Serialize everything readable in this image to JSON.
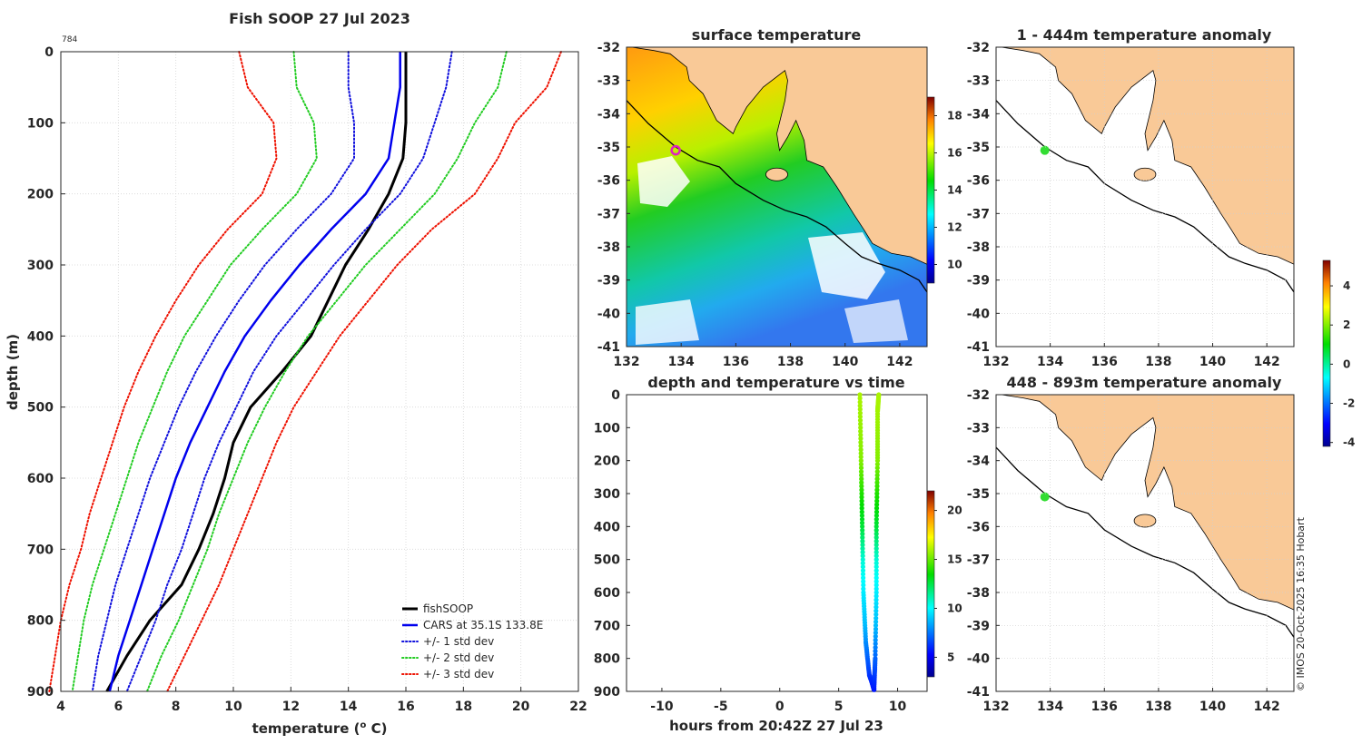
{
  "colors": {
    "land": "#f9c997",
    "observed": "#000000",
    "cars": "#0000ee",
    "std1": "#1010dd",
    "std2": "#22cc22",
    "std3": "#ee1100",
    "marker_sat": "#e020c0",
    "marker_anom": "#33dd33"
  },
  "chart_data": [
    {
      "type": "line",
      "panel": "profile",
      "title": "Fish SOOP 27 Jul 2023",
      "corner_label": "784",
      "xlabel": "temperature (",
      "xlabel_sup": "o",
      "xlabel_end": " C)",
      "ylabel": "depth (m)",
      "xlim": [
        4,
        22
      ],
      "ylim": [
        900,
        0
      ],
      "xticks": [
        "4",
        "6",
        "8",
        "10",
        "12",
        "14",
        "16",
        "18",
        "20",
        "22"
      ],
      "yticks": [
        "0",
        "100",
        "200",
        "300",
        "400",
        "500",
        "600",
        "700",
        "800",
        "900"
      ],
      "grid": true,
      "depth": [
        0,
        50,
        100,
        150,
        200,
        250,
        300,
        350,
        400,
        450,
        500,
        550,
        600,
        650,
        700,
        750,
        800,
        850,
        900
      ],
      "series": [
        {
          "name": "fishSOOP",
          "style": "solid",
          "color_key": "observed",
          "width": 3,
          "values": [
            16.0,
            16.0,
            16.0,
            15.9,
            15.4,
            14.7,
            13.9,
            13.3,
            12.7,
            11.7,
            10.6,
            10.0,
            9.7,
            9.3,
            8.8,
            8.2,
            7.1,
            6.3,
            5.6
          ]
        },
        {
          "name": "CARS at 35.1S 133.8E",
          "style": "solid",
          "color_key": "cars",
          "width": 2.5,
          "values": [
            15.8,
            15.8,
            15.6,
            15.4,
            14.6,
            13.4,
            12.3,
            11.3,
            10.4,
            9.7,
            9.1,
            8.5,
            8.0,
            7.6,
            7.2,
            6.8,
            6.4,
            6.0,
            5.7
          ]
        },
        {
          "name": "+/- 1 std dev",
          "style": "dotted",
          "color_key": "std1",
          "width": 2,
          "values": [
            14.0,
            14.0,
            14.2,
            14.2,
            13.4,
            12.2,
            11.1,
            10.2,
            9.4,
            8.7,
            8.1,
            7.6,
            7.1,
            6.7,
            6.3,
            5.9,
            5.6,
            5.3,
            5.1
          ]
        },
        {
          "name": "+/- 1 std dev (upper)",
          "style": "dotted",
          "color_key": "std1",
          "width": 2,
          "in_legend": false,
          "values": [
            17.6,
            17.4,
            17.0,
            16.6,
            15.8,
            14.6,
            13.5,
            12.5,
            11.5,
            10.7,
            10.1,
            9.5,
            9.0,
            8.6,
            8.2,
            7.7,
            7.3,
            6.8,
            6.3
          ]
        },
        {
          "name": "+/- 2 std dev",
          "style": "dotted",
          "color_key": "std2",
          "width": 2,
          "values": [
            12.1,
            12.2,
            12.8,
            12.9,
            12.2,
            11.0,
            9.9,
            9.1,
            8.3,
            7.7,
            7.2,
            6.7,
            6.3,
            5.9,
            5.5,
            5.1,
            4.8,
            4.6,
            4.4
          ]
        },
        {
          "name": "+/- 2 std dev (upper)",
          "style": "dotted",
          "color_key": "std2",
          "width": 2,
          "in_legend": false,
          "values": [
            19.5,
            19.2,
            18.4,
            17.8,
            17.0,
            15.8,
            14.6,
            13.6,
            12.6,
            11.8,
            11.1,
            10.5,
            10.0,
            9.5,
            9.1,
            8.6,
            8.1,
            7.5,
            7.0
          ]
        },
        {
          "name": "+/- 3 std dev",
          "style": "dotted",
          "color_key": "std3",
          "width": 2,
          "values": [
            10.2,
            10.5,
            11.4,
            11.5,
            11.0,
            9.8,
            8.8,
            8.0,
            7.3,
            6.7,
            6.2,
            5.8,
            5.4,
            5.0,
            4.7,
            4.3,
            4.0,
            3.8,
            3.6
          ]
        },
        {
          "name": "+/- 3 std dev (upper)",
          "style": "dotted",
          "color_key": "std3",
          "width": 2,
          "in_legend": false,
          "values": [
            21.4,
            20.9,
            19.8,
            19.2,
            18.4,
            16.9,
            15.7,
            14.7,
            13.7,
            12.9,
            12.1,
            11.5,
            11.0,
            10.5,
            10.0,
            9.5,
            8.9,
            8.3,
            7.7
          ]
        }
      ]
    },
    {
      "type": "heatmap",
      "panel": "surface",
      "title": "surface temperature",
      "xlim": [
        132,
        143
      ],
      "ylim": [
        -41,
        -32
      ],
      "xticks": [
        "132",
        "134",
        "136",
        "138",
        "140",
        "142"
      ],
      "yticks": [
        "-32",
        "-33",
        "-34",
        "-35",
        "-36",
        "-37",
        "-38",
        "-39",
        "-40",
        "-41"
      ],
      "colorbar": {
        "range": [
          9,
          19
        ],
        "ticks": [
          "10",
          "12",
          "14",
          "16",
          "18"
        ]
      },
      "marker": {
        "lon": 133.8,
        "lat": -35.1
      }
    },
    {
      "type": "scatter",
      "panel": "timeseries",
      "title": "depth and temperature vs time",
      "xlabel": "hours from 20:42Z 27 Jul 23",
      "xlim": [
        -13,
        12.5
      ],
      "ylim": [
        900,
        0
      ],
      "xticks": [
        "-10",
        "-5",
        "0",
        "5",
        "10"
      ],
      "yticks": [
        "0",
        "100",
        "200",
        "300",
        "400",
        "500",
        "600",
        "700",
        "800",
        "900"
      ],
      "colorbar": {
        "range": [
          3,
          22
        ],
        "ticks": [
          "5",
          "10",
          "15",
          "20"
        ]
      },
      "descent": {
        "hours": [
          6.8,
          6.9,
          7.0,
          7.1,
          7.3,
          7.6,
          7.8,
          8.0
        ],
        "depth": [
          0,
          200,
          400,
          600,
          750,
          850,
          870,
          895
        ]
      },
      "ascent": {
        "hours": [
          8.0,
          8.1,
          8.2,
          8.2,
          8.3,
          8.3,
          8.4
        ],
        "depth": [
          895,
          800,
          600,
          400,
          200,
          50,
          0
        ]
      },
      "temperature_by_depth": {
        "depth": [
          0,
          200,
          300,
          400,
          500,
          600,
          700,
          800,
          900
        ],
        "temp": [
          16.0,
          15.4,
          13.9,
          12.7,
          10.6,
          9.7,
          8.8,
          7.1,
          5.6
        ]
      }
    },
    {
      "type": "heatmap",
      "panel": "anomaly_upper",
      "title": "1 - 444m temperature anomaly",
      "xlim": [
        132,
        143
      ],
      "ylim": [
        -41,
        -32
      ],
      "xticks": [
        "132",
        "134",
        "136",
        "138",
        "140",
        "142"
      ],
      "yticks": [
        "-32",
        "-33",
        "-34",
        "-35",
        "-36",
        "-37",
        "-38",
        "-39",
        "-40",
        "-41"
      ],
      "marker": {
        "lon": 133.8,
        "lat": -35.1
      }
    },
    {
      "type": "heatmap",
      "panel": "anomaly_lower",
      "title": "448 - 893m temperature anomaly",
      "xlim": [
        132,
        143
      ],
      "ylim": [
        -41,
        -32
      ],
      "xticks": [
        "132",
        "134",
        "136",
        "138",
        "140",
        "142"
      ],
      "yticks": [
        "-32",
        "-33",
        "-34",
        "-35",
        "-36",
        "-37",
        "-38",
        "-39",
        "-40",
        "-41"
      ],
      "marker": {
        "lon": 133.8,
        "lat": -35.1
      },
      "colorbar": {
        "range": [
          -4.2,
          5.3
        ],
        "ticks": [
          "4",
          "2",
          "0",
          "-2",
          "-4"
        ]
      }
    }
  ],
  "footer": {
    "copyright": "© IMOS 20-Oct-2025 16:35 Hobart"
  }
}
